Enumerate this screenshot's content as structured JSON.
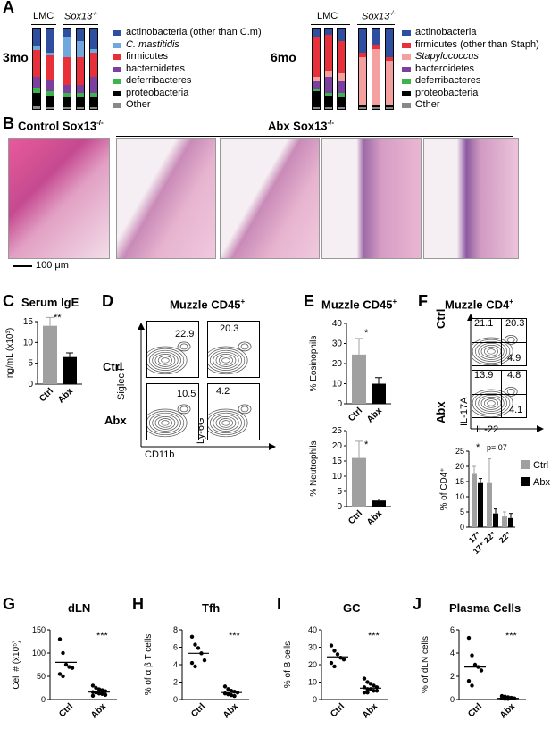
{
  "panels": {
    "A": "A",
    "B": "B",
    "C": "C",
    "D": "D",
    "E": "E",
    "F": "F",
    "G": "G",
    "H": "H",
    "I": "I",
    "J": "J"
  },
  "panelA": {
    "group_lmc": "LMC",
    "group_sox": "Sox13",
    "group_sox_sup": "-/-",
    "age_3mo": "3mo",
    "age_6mo": "6mo",
    "legend_3mo": [
      {
        "label": "actinobacteria (other than C.m)",
        "color": "#2e4fa0"
      },
      {
        "label": "C. mastitidis",
        "color": "#6fa8dc"
      },
      {
        "label": "firmicutes",
        "color": "#e8303a"
      },
      {
        "label": "bacteroidetes",
        "color": "#7b3fa0"
      },
      {
        "label": "deferribacteres",
        "color": "#3cb44b"
      },
      {
        "label": "proteobacteria",
        "color": "#000000"
      },
      {
        "label": "Other",
        "color": "#888888"
      }
    ],
    "legend_6mo": [
      {
        "label": "actinobacteria",
        "color": "#2e4fa0"
      },
      {
        "label": "firmicutes (other than Staph)",
        "color": "#e8303a"
      },
      {
        "label": "Stapylococcus",
        "color": "#f4a0a0"
      },
      {
        "label": "bacteroidetes",
        "color": "#7b3fa0"
      },
      {
        "label": "deferribacteres",
        "color": "#3cb44b"
      },
      {
        "label": "proteobacteria",
        "color": "#000000"
      },
      {
        "label": "Other",
        "color": "#888888"
      }
    ]
  },
  "panelB": {
    "control": "Control Sox13",
    "abx": "Abx Sox13",
    "sup": "-/-",
    "scale": "100 μm"
  },
  "panelC": {
    "title": "Serum IgE",
    "ylabel": "ng/mL (x10³)",
    "sig": "**"
  },
  "panelD": {
    "title": "Muzzle CD45",
    "title_sup": "+",
    "row_ctrl": "Ctrl",
    "row_abx": "Abx",
    "xlab1": "CD11b",
    "ylab1": "Siglec F",
    "ylab2": "Ly-6G",
    "values": [
      "22.9",
      "20.3",
      "10.5",
      "4.2"
    ]
  },
  "panelE": {
    "title": "Muzzle CD45",
    "title_sup": "+",
    "sig1": "*",
    "sig2": "*"
  },
  "panelF": {
    "title": "Muzzle CD4",
    "title_sup": "+",
    "row_ctrl": "Ctrl",
    "row_abx": "Abx",
    "xlab": "IL-22",
    "ylab": "IL-17A",
    "ctrl_vals": [
      "21.1",
      "20.3",
      "4.9"
    ],
    "abx_vals": [
      "13.9",
      "4.8",
      "4.1"
    ],
    "sig": "*",
    "pval": "p=.07",
    "legend_ctrl": "Ctrl",
    "legend_abx": "Abx"
  },
  "panelG": {
    "title": "dLN",
    "sig": "***"
  },
  "panelH": {
    "title": "Tfh",
    "sig": "***"
  },
  "panelI": {
    "title": "GC",
    "sig": "***"
  },
  "panelJ": {
    "title": "Plasma Cells",
    "sig": "***"
  },
  "colors": {
    "ctrl": "#a0a0a0",
    "abx": "#000000",
    "he_pink": "#e58ab0",
    "he_purple": "#8c5aa0"
  },
  "chart_data": [
    {
      "id": "C",
      "type": "bar",
      "categories": [
        "Ctrl",
        "Abx"
      ],
      "values": [
        14,
        6.5
      ],
      "errors": [
        2,
        1
      ],
      "ylabel": "ng/mL (x10³)",
      "ylim": [
        0,
        15
      ],
      "yticks": [
        0,
        5,
        10,
        15
      ]
    },
    {
      "id": "E_top",
      "type": "bar",
      "categories": [
        "Ctrl",
        "Abx"
      ],
      "values": [
        24.5,
        10
      ],
      "errors": [
        8,
        3
      ],
      "ylabel": "% Eosinophils",
      "ylim": [
        0,
        40
      ],
      "yticks": [
        0,
        10,
        20,
        30,
        40
      ]
    },
    {
      "id": "E_bottom",
      "type": "bar",
      "categories": [
        "Ctrl",
        "Abx"
      ],
      "values": [
        16,
        2
      ],
      "errors": [
        5.5,
        0.5
      ],
      "ylabel": "% Neutrophils",
      "ylim": [
        0,
        25
      ],
      "yticks": [
        0,
        5,
        10,
        15,
        20,
        25
      ]
    },
    {
      "id": "F_bar",
      "type": "bar",
      "categories": [
        "17⁺",
        "17⁺ 22⁺",
        "22⁺"
      ],
      "series": [
        {
          "name": "Ctrl",
          "values": [
            17.5,
            14.5,
            3.5
          ],
          "errors": [
            2.5,
            8,
            1.5
          ]
        },
        {
          "name": "Abx",
          "values": [
            14.5,
            4.5,
            3
          ],
          "errors": [
            1.5,
            1.5,
            1.5
          ]
        }
      ],
      "ylabel": "% of CD4⁺",
      "ylim": [
        0,
        25
      ],
      "yticks": [
        0,
        5,
        10,
        15,
        20,
        25
      ]
    },
    {
      "id": "G",
      "type": "scatter",
      "categories": [
        "Ctrl",
        "Abx"
      ],
      "ctrl": [
        130,
        100,
        75,
        70,
        68,
        55,
        50
      ],
      "abx": [
        30,
        25,
        22,
        20,
        18,
        16,
        15,
        13,
        12,
        10,
        8
      ],
      "ctrl_mean": 80,
      "abx_mean": 16,
      "ylabel": "Cell # (x10⁵)",
      "ylim": [
        0,
        150
      ],
      "yticks": [
        0,
        50,
        100,
        150
      ]
    },
    {
      "id": "H",
      "type": "scatter",
      "categories": [
        "Ctrl",
        "Abx"
      ],
      "ctrl": [
        7.2,
        6.3,
        5.9,
        5.3,
        4.5,
        4.2,
        3.8
      ],
      "abx": [
        1.5,
        1.2,
        1.0,
        0.9,
        0.8,
        0.7,
        0.6,
        0.5,
        0.4
      ],
      "ctrl_mean": 5.3,
      "abx_mean": 0.8,
      "ylabel": "% of α β T cells",
      "ylim": [
        0,
        8
      ],
      "yticks": [
        0,
        2,
        4,
        6,
        8
      ]
    },
    {
      "id": "I",
      "type": "scatter",
      "categories": [
        "Ctrl",
        "Abx"
      ],
      "ctrl": [
        31,
        28,
        26,
        24,
        23,
        21,
        19
      ],
      "abx": [
        12,
        10,
        9,
        8,
        7,
        7,
        6,
        6,
        5,
        5,
        4,
        4
      ],
      "ctrl_mean": 24.5,
      "abx_mean": 6.5,
      "ylabel": "% of B cells",
      "ylim": [
        0,
        40
      ],
      "yticks": [
        0,
        10,
        20,
        30,
        40
      ]
    },
    {
      "id": "J",
      "type": "scatter",
      "categories": [
        "Ctrl",
        "Abx"
      ],
      "ctrl": [
        5.3,
        3.8,
        3.0,
        2.8,
        2.5,
        1.6,
        1.2
      ],
      "abx": [
        0.3,
        0.25,
        0.2,
        0.15,
        0.1,
        0.1,
        0.05,
        0.05
      ],
      "ctrl_mean": 2.8,
      "abx_mean": 0.1,
      "ylabel": "% of dLN cells",
      "ylim": [
        0,
        6
      ],
      "yticks": [
        0,
        2,
        4,
        6
      ]
    }
  ]
}
